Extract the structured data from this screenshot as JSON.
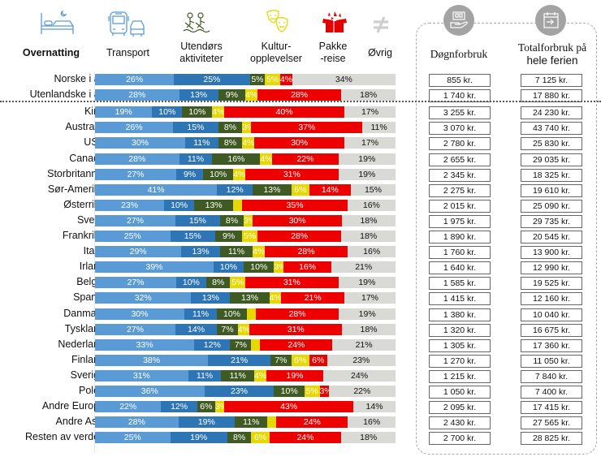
{
  "chart_data": {
    "type": "bar",
    "orientation": "horizontal-stacked-100",
    "title": "",
    "xlabel": "",
    "ylabel": "",
    "xlim": [
      0,
      100
    ],
    "grid": false,
    "legend": "top",
    "series": [
      {
        "name": "Overnatting",
        "color": "#5b9bd5",
        "icon": "bed-icon"
      },
      {
        "name": "Transport",
        "color": "#2e75b6",
        "icon": "bus-car-icon"
      },
      {
        "name": "Utendørs aktiviteter",
        "color": "#3f5a23",
        "icon": "outdoor-activity-icon"
      },
      {
        "name": "Kultur-opplevelser",
        "color": "#e6d800",
        "icon": "theater-masks-icon"
      },
      {
        "name": "Pakke -reise",
        "color": "#ee0000",
        "icon": "gift-box-icon"
      },
      {
        "name": "Øvrig",
        "color": "#d9d9d6",
        "icon": "not-equal-icon"
      }
    ],
    "categories": [
      "Norske i alt",
      "Utenlandske i alt",
      "Kina",
      "Australia",
      "USA",
      "Canada",
      "Storbritannia",
      "Sør-Amerika",
      "Østerrike",
      "Sveits",
      "Frankrike",
      "Italia",
      "Irland",
      "Belgia",
      "Spania",
      "Danmark",
      "Tyskland",
      "Nederland",
      "Finland",
      "Sverige",
      "Polen",
      "Andre Europa",
      "Andre Asia",
      "Resten av verden"
    ],
    "values": [
      [
        26,
        25,
        5,
        5,
        4,
        34
      ],
      [
        28,
        13,
        9,
        4,
        28,
        18
      ],
      [
        19,
        10,
        10,
        4,
        40,
        17
      ],
      [
        26,
        15,
        8,
        3,
        37,
        11
      ],
      [
        30,
        11,
        8,
        4,
        30,
        17
      ],
      [
        28,
        11,
        16,
        4,
        22,
        19
      ],
      [
        27,
        9,
        10,
        4,
        31,
        19
      ],
      [
        41,
        12,
        13,
        6,
        14,
        15
      ],
      [
        23,
        10,
        13,
        3,
        35,
        16
      ],
      [
        27,
        15,
        8,
        3,
        30,
        18
      ],
      [
        25,
        15,
        9,
        5,
        28,
        18
      ],
      [
        29,
        13,
        11,
        4,
        28,
        16
      ],
      [
        39,
        10,
        10,
        3,
        16,
        21
      ],
      [
        27,
        10,
        8,
        5,
        31,
        19
      ],
      [
        32,
        13,
        13,
        4,
        21,
        17
      ],
      [
        30,
        11,
        10,
        3,
        28,
        19
      ],
      [
        27,
        14,
        7,
        4,
        31,
        18
      ],
      [
        33,
        12,
        7,
        3,
        24,
        21
      ],
      [
        38,
        21,
        7,
        6,
        6,
        23
      ],
      [
        31,
        11,
        11,
        4,
        19,
        24
      ],
      [
        36,
        23,
        10,
        5,
        3,
        22
      ],
      [
        22,
        12,
        6,
        3,
        43,
        14
      ],
      [
        28,
        19,
        11,
        3,
        24,
        16
      ],
      [
        25,
        19,
        8,
        6,
        24,
        18
      ]
    ],
    "labels": [
      [
        "26%",
        "25%",
        "5%",
        "5%",
        "4%",
        "34%"
      ],
      [
        "28%",
        "13%",
        "9%",
        "4%",
        "28%",
        "18%"
      ],
      [
        "19%",
        "10%",
        "10%",
        "4%",
        "40%",
        "17%"
      ],
      [
        "26%",
        "15%",
        "8%",
        "3%",
        "37%",
        "11%"
      ],
      [
        "30%",
        "11%",
        "8%",
        "4%",
        "30%",
        "17%"
      ],
      [
        "28%",
        "11%",
        "16%",
        "4%",
        "22%",
        "19%"
      ],
      [
        "27%",
        "9%",
        "10%",
        "4%",
        "31%",
        "19%"
      ],
      [
        "41%",
        "12%",
        "13%",
        "6%",
        "14%",
        "15%"
      ],
      [
        "23%",
        "10%",
        "13%",
        "",
        "35%",
        "16%"
      ],
      [
        "27%",
        "15%",
        "8%",
        "3%",
        "30%",
        "18%"
      ],
      [
        "25%",
        "15%",
        "9%",
        "5%",
        "28%",
        "18%"
      ],
      [
        "29%",
        "13%",
        "11%",
        "4%",
        "28%",
        "16%"
      ],
      [
        "39%",
        "10%",
        "10%",
        "3%",
        "16%",
        "21%"
      ],
      [
        "27%",
        "10%",
        "8%",
        "5%",
        "31%",
        "19%"
      ],
      [
        "32%",
        "13%",
        "13%",
        "4%",
        "21%",
        "17%"
      ],
      [
        "30%",
        "11%",
        "10%",
        "",
        "28%",
        "19%"
      ],
      [
        "27%",
        "14%",
        "7%",
        "4%",
        "31%",
        "18%"
      ],
      [
        "33%",
        "12%",
        "7%",
        "",
        "24%",
        "21%"
      ],
      [
        "38%",
        "21%",
        "7%",
        "6%",
        "6%",
        "23%"
      ],
      [
        "31%",
        "11%",
        "11%",
        "4%",
        "19%",
        "24%"
      ],
      [
        "36%",
        "23%",
        "10%",
        "5%",
        "3%",
        "22%"
      ],
      [
        "22%",
        "12%",
        "6%",
        "3%",
        "43%",
        "14%"
      ],
      [
        "28%",
        "19%",
        "11%",
        "",
        "24%",
        "16%"
      ],
      [
        "25%",
        "19%",
        "8%",
        "6%",
        "24%",
        "18%"
      ]
    ],
    "daily_spend_title": "Døgnforbruk",
    "total_spend_title": "Totalforbruk på hele ferien",
    "daily_spend": [
      "855 kr.",
      "1 740 kr.",
      "3 255 kr.",
      "3 070 kr.",
      "2 780 kr.",
      "2 655 kr.",
      "2 345 kr.",
      "2 275 kr.",
      "2 015 kr.",
      "1 975 kr.",
      "1 890 kr.",
      "1 760 kr.",
      "1 640 kr.",
      "1 585 kr.",
      "1 415 kr.",
      "1 380 kr.",
      "1 320 kr.",
      "1 305  kr.",
      "1 270 kr.",
      "1 215 kr.",
      "1 050 kr.",
      "2 095 kr.",
      "2 430 kr.",
      "2 700 kr."
    ],
    "total_spend": [
      "7 125 kr.",
      "17 880 kr.",
      "24 230 kr.",
      "43 740 kr.",
      "25 830 kr.",
      "29 035 kr.",
      "18 325 kr.",
      "19 610 kr.",
      "25 090 kr.",
      "29 735 kr.",
      "20 545 kr.",
      "13 900 kr.",
      "12 990 kr.",
      "19 525 kr.",
      "12 160 kr.",
      "10 040 kr.",
      "16 675 kr.",
      "17 360 kr.",
      "11 050 kr.",
      "7 840 kr.",
      "7 400 kr.",
      "17 415 kr.",
      "27 565 kr.",
      "28 825 kr."
    ]
  },
  "header": {
    "overnatting": "Overnatting",
    "transport": "Transport",
    "utendors_1": "Utendørs",
    "utendors_2": "aktiviteter",
    "kultur_1": "Kultur-",
    "kultur_2": "opplevelser",
    "pakke_1": "Pakke",
    "pakke_2": "-reise",
    "ovrig": "Øvrig",
    "dogn": "Døgnforbruk",
    "total_1": "Totalforbruk på",
    "total_2": "hele ferien"
  }
}
